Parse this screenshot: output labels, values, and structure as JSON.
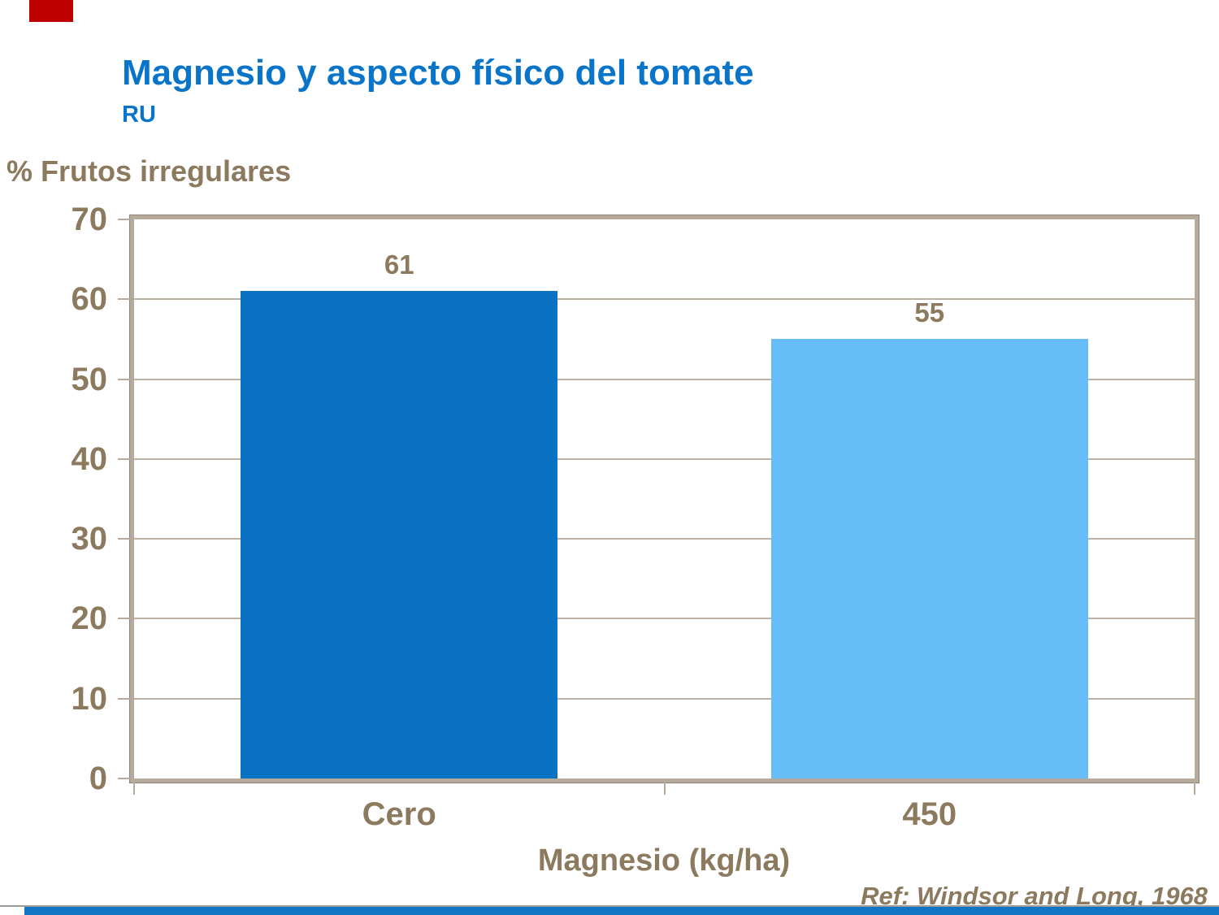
{
  "slide": {
    "title": "Magnesio y aspecto físico del tomate",
    "subtitle": "RU",
    "reference": "Ref: Windsor and Long, 1968"
  },
  "chart_data": {
    "type": "bar",
    "title": "Magnesio y aspecto físico del tomate",
    "subtitle": "RU",
    "ylabel": "% Frutos irregulares",
    "xlabel": "Magnesio (kg/ha)",
    "categories": [
      "Cero",
      "450"
    ],
    "values": [
      61,
      55
    ],
    "data_labels": [
      "61",
      "55"
    ],
    "bar_colors": [
      "#0A72C2",
      "#66BDF8"
    ],
    "ylim": [
      0,
      70
    ],
    "yticks": [
      0,
      10,
      20,
      30,
      40,
      50,
      60,
      70
    ],
    "grid": true,
    "legend": false,
    "annotation": "Ref: Windsor and Long, 1968"
  },
  "colors": {
    "title_blue": "#0A75C8",
    "text_brown": "#8C7A5E",
    "bar_dark_blue": "#0A72C2",
    "bar_light_blue": "#66BDF8",
    "frame_tan": "#B5AA9B",
    "frame_edge": "#8E8072",
    "gridline_tan": "#BCB1A2",
    "corner_red": "#C00000",
    "bottom_strip_blue": "#1175C6",
    "hairline_gray": "#9B9B9B",
    "background": "#FFFFFF"
  }
}
